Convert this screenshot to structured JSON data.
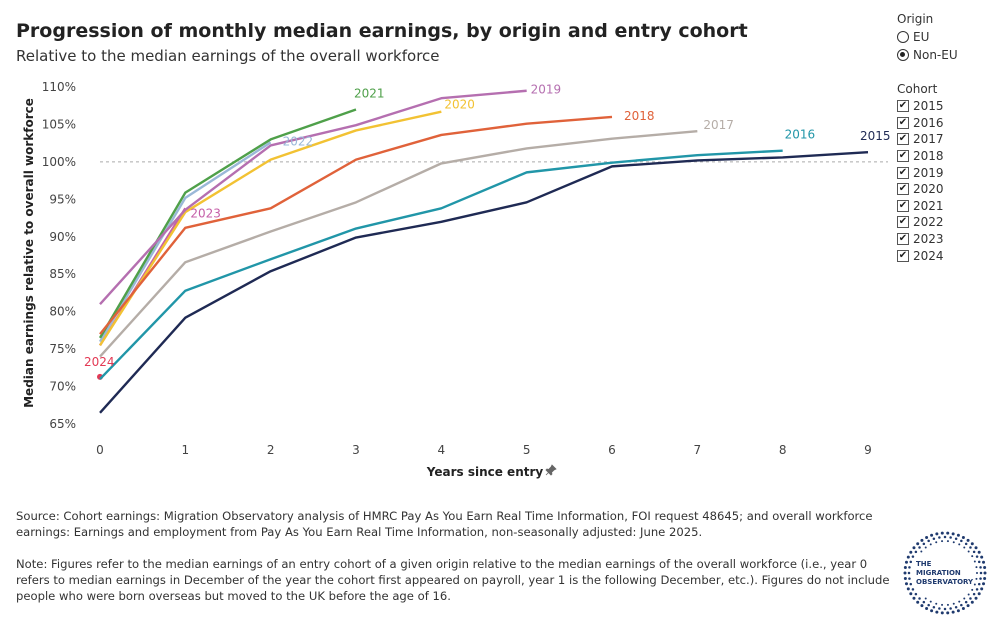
{
  "header": {
    "title": "Progression of monthly median earnings, by origin and entry cohort",
    "subtitle": "Relative to the median earnings of the overall workforce"
  },
  "chart_data": {
    "type": "line",
    "title": "Progression of monthly median earnings, by origin and entry cohort",
    "subtitle": "Relative to the median earnings of the overall workforce",
    "xlabel": "Years since entry",
    "ylabel": "Median earnings relative to overall workforce",
    "x_ticks": [
      0,
      1,
      2,
      3,
      4,
      5,
      6,
      7,
      8,
      9
    ],
    "y_ticks": [
      65,
      70,
      75,
      80,
      85,
      90,
      95,
      100,
      105,
      110
    ],
    "y_tick_labels": [
      "65%",
      "70%",
      "75%",
      "80%",
      "85%",
      "90%",
      "95%",
      "100%",
      "105%",
      "110%"
    ],
    "xlim": [
      0,
      9
    ],
    "ylim": [
      65,
      110
    ],
    "reference_line": 100,
    "grid": false,
    "series": [
      {
        "name": "2015",
        "color": "#1f2a54",
        "values": [
          66.5,
          79.2,
          85.4,
          89.9,
          92.0,
          94.6,
          99.4,
          100.2,
          100.6,
          101.3
        ]
      },
      {
        "name": "2016",
        "color": "#2196a8",
        "values": [
          71.0,
          82.8,
          87.0,
          91.1,
          93.8,
          98.6,
          99.9,
          100.9,
          101.5
        ]
      },
      {
        "name": "2017",
        "color": "#b5ada7",
        "values": [
          74.0,
          86.6,
          90.7,
          94.6,
          99.8,
          101.8,
          103.1,
          104.1
        ]
      },
      {
        "name": "2018",
        "color": "#e0623a",
        "values": [
          77.0,
          91.2,
          93.8,
          100.3,
          103.6,
          105.1,
          106.0
        ]
      },
      {
        "name": "2019",
        "color": "#b56fb0",
        "values": [
          81.0,
          93.6,
          102.2,
          104.9,
          108.5,
          109.5
        ]
      },
      {
        "name": "2020",
        "color": "#f2c233",
        "values": [
          75.5,
          93.3,
          100.3,
          104.2,
          106.7
        ]
      },
      {
        "name": "2021",
        "color": "#4fa04a",
        "values": [
          76.5,
          95.9,
          103.0,
          107.0
        ]
      },
      {
        "name": "2022",
        "color": "#9ab8d8",
        "values": [
          76.0,
          95.2,
          102.6
        ]
      },
      {
        "name": "2023",
        "color": "#c55fa8",
        "values": [
          75.5,
          93.8
        ]
      },
      {
        "name": "2024",
        "color": "#e33a55",
        "values": [
          71.3
        ]
      }
    ]
  },
  "legend_origin": {
    "title": "Origin",
    "options": [
      {
        "label": "EU",
        "selected": false
      },
      {
        "label": "Non-EU",
        "selected": true
      }
    ]
  },
  "legend_cohort": {
    "title": "Cohort",
    "items": [
      "2015",
      "2016",
      "2017",
      "2018",
      "2019",
      "2020",
      "2021",
      "2022",
      "2023",
      "2024"
    ],
    "check_mark": "✔"
  },
  "footer": {
    "source": "Source: Cohort earnings: Migration Observatory analysis of HMRC Pay As You Earn Real Time Information, FOI request 48645; and overall workforce earnings: Earnings and employment from Pay As You Earn Real Time Information, non-seasonally adjusted: June 2025.",
    "note": "Note: Figures refer to the median earnings of an entry cohort of a given origin relative to the median earnings of the overall workforce (i.e., year 0 refers to median earnings in December of the year the cohort first appeared on payroll, year 1 is the following December, etc.). Figures do not include people who were born overseas but moved to the UK before the age of 16.",
    "pin_icon": "pin-icon"
  },
  "logo": {
    "line1": "THE",
    "line2": "MIGRATION",
    "line3": "OBSERVATORY",
    "color": "#1f3a6e"
  }
}
